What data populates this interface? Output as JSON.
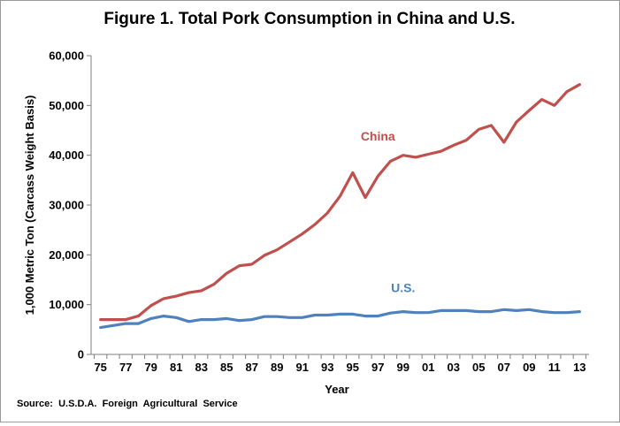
{
  "chart_data": {
    "type": "line",
    "title": "Figure 1. Total Pork Consumption in China and U.S.",
    "xlabel": "Year",
    "ylabel": "1,000 Metric Ton (Carcass Weight Basis)",
    "ylim": [
      0,
      60000
    ],
    "yticks": [
      0,
      10000,
      20000,
      30000,
      40000,
      50000,
      60000
    ],
    "ytick_labels": [
      "0",
      "10,000",
      "20,000",
      "30,000",
      "40,000",
      "50,000",
      "60,000"
    ],
    "x": [
      "75",
      "76",
      "77",
      "78",
      "79",
      "80",
      "81",
      "82",
      "83",
      "84",
      "85",
      "86",
      "87",
      "88",
      "89",
      "90",
      "91",
      "92",
      "93",
      "94",
      "95",
      "96",
      "97",
      "98",
      "99",
      "00",
      "01",
      "02",
      "03",
      "04",
      "05",
      "06",
      "07",
      "08",
      "09",
      "10",
      "11",
      "12",
      "13"
    ],
    "xtick_labels": [
      "75",
      "77",
      "79",
      "81",
      "83",
      "85",
      "87",
      "89",
      "91",
      "93",
      "95",
      "97",
      "99",
      "01",
      "03",
      "05",
      "07",
      "09",
      "11",
      "13"
    ],
    "series": [
      {
        "name": "China",
        "color": "#c0504d",
        "values": [
          7000,
          7000,
          7000,
          7700,
          9800,
          11200,
          11700,
          12400,
          12800,
          14100,
          16300,
          17800,
          18100,
          19900,
          21000,
          22600,
          24200,
          26100,
          28400,
          31800,
          36500,
          31500,
          35800,
          38800,
          40000,
          39600,
          40200,
          40800,
          42000,
          43000,
          45200,
          46000,
          42600,
          46700,
          49000,
          51200,
          50000,
          52800,
          54200
        ]
      },
      {
        "name": "U.S.",
        "color": "#4f81bd",
        "values": [
          5400,
          5800,
          6200,
          6200,
          7200,
          7700,
          7400,
          6600,
          7000,
          7000,
          7200,
          6800,
          7000,
          7600,
          7600,
          7400,
          7400,
          7900,
          7900,
          8100,
          8100,
          7700,
          7700,
          8300,
          8600,
          8400,
          8400,
          8800,
          8800,
          8800,
          8600,
          8600,
          9000,
          8800,
          9000,
          8600,
          8400,
          8400,
          8600
        ]
      }
    ],
    "series_labels": [
      {
        "name": "China",
        "anchor_year": "97",
        "anchor_value": 43000
      },
      {
        "name": "U.S.",
        "anchor_year": "99",
        "anchor_value": 12500
      }
    ],
    "source": "Source:  U.S.D.A.  Foreign  Agricultural  Service",
    "grid": false
  }
}
